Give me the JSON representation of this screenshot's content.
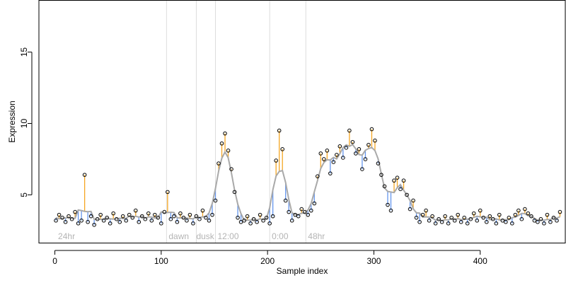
{
  "chart_data": {
    "type": "scatter",
    "title": "",
    "xlabel": "Sample index",
    "ylabel": "Expression",
    "xlim": [
      -15,
      480
    ],
    "ylim": [
      1.6,
      18.6
    ],
    "x_ticks": [
      0,
      100,
      200,
      300,
      400
    ],
    "y_ticks": [
      5,
      10,
      15
    ],
    "grid": false,
    "legend": "none",
    "colors": {
      "points": "#000000",
      "fitted_line": "#a9a9a9",
      "above_segments": "#f5a623",
      "below_segments": "#6495ed",
      "period_lines": "#dddddd",
      "period_labels": "#b4b4b4"
    },
    "period_boundaries": [
      105,
      133,
      151,
      202,
      236
    ],
    "period_labels": [
      {
        "text": "24hr",
        "x": 3
      },
      {
        "text": "dawn",
        "x": 107
      },
      {
        "text": "dusk",
        "x": 133
      },
      {
        "text": "12:00",
        "x": 153
      },
      {
        "text": "0:00",
        "x": 204
      },
      {
        "text": "48hr",
        "x": 238
      }
    ],
    "series": [
      {
        "name": "",
        "step": 3,
        "y": [
          3.2,
          3.6,
          3.4,
          3.1,
          3.5,
          3.3,
          3.8,
          3.0,
          3.2,
          6.4,
          3.1,
          3.5,
          2.9,
          3.3,
          3.6,
          3.2,
          3.4,
          3.0,
          3.7,
          3.3,
          3.1,
          3.5,
          3.2,
          3.6,
          3.4,
          3.9,
          3.1,
          3.5,
          3.3,
          3.7,
          3.2,
          3.6,
          3.4,
          3.0,
          3.8,
          5.2,
          3.3,
          3.5,
          3.1,
          3.7,
          3.4,
          3.2,
          3.6,
          3.0,
          3.5,
          3.3,
          3.9,
          3.4,
          3.2,
          3.6,
          4.6,
          7.2,
          8.6,
          9.3,
          8.1,
          6.8,
          5.2,
          3.4,
          3.1,
          3.2,
          3.5,
          3.0,
          3.3,
          3.1,
          3.6,
          3.2,
          3.4,
          3.0,
          3.5,
          7.4,
          9.5,
          8.2,
          4.6,
          3.8,
          3.2,
          3.6,
          3.5,
          4.0,
          3.8,
          3.6,
          3.9,
          4.4,
          6.3,
          7.9,
          7.5,
          8.1,
          6.5,
          7.3,
          7.8,
          8.4,
          7.6,
          8.3,
          9.5,
          8.7,
          7.9,
          8.2,
          6.8,
          7.5,
          8.5,
          9.6,
          8.8,
          7.2,
          6.4,
          5.6,
          4.3,
          3.9,
          6.0,
          6.2,
          5.4,
          6.0,
          5.0,
          4.0,
          4.6,
          3.4,
          3.1,
          3.6,
          3.9,
          3.2,
          3.5,
          3.0,
          3.3,
          3.1,
          3.5,
          3.0,
          3.4,
          3.2,
          3.6,
          3.1,
          3.4,
          3.0,
          3.3,
          3.7,
          3.2,
          3.9,
          3.4,
          3.1,
          3.5,
          3.3,
          3.0,
          3.6,
          3.2,
          3.1,
          3.4,
          3.0,
          3.6,
          3.9,
          3.3,
          4.0,
          3.7,
          3.5,
          3.2,
          3.1,
          3.3,
          3.0,
          3.6,
          3.1,
          3.4,
          3.2,
          3.8
        ]
      }
    ]
  }
}
